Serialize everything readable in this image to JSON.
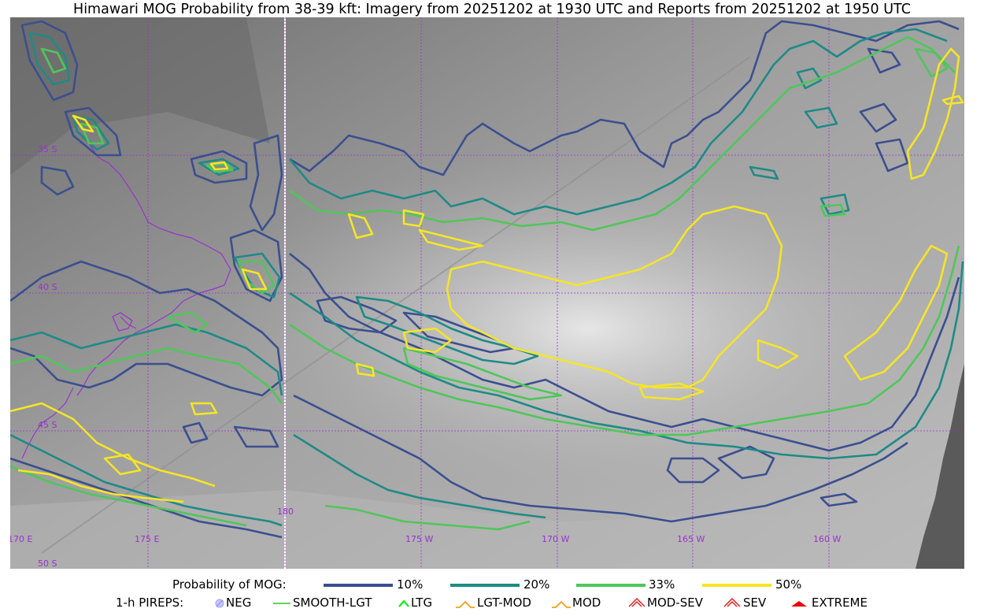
{
  "title": "Himawari MOG Probability from 38-39 kft: Imagery from 20251202 at 1930 UTC and Reports from 20251202 at 1950 UTC",
  "map": {
    "lat_labels": [
      "35 S",
      "40 S",
      "45 S",
      "50 S"
    ],
    "lon_labels": [
      "170 E",
      "175 E",
      "180",
      "175 W",
      "170 W",
      "165 W",
      "160 W"
    ]
  },
  "legend": {
    "probability_label": "Probability of MOG:",
    "levels": [
      {
        "label": "10%",
        "color": "#3b4f8f"
      },
      {
        "label": "20%",
        "color": "#1f8a86"
      },
      {
        "label": "33%",
        "color": "#4fc65a"
      },
      {
        "label": "50%",
        "color": "#f5e526"
      }
    ],
    "pireps_label": "1-h PIREPS:",
    "pireps": [
      {
        "label": "NEG",
        "icon": "neg-circle-icon",
        "color": "#c8c8ff"
      },
      {
        "label": "SMOOTH-LGT",
        "icon": "smooth-line-icon",
        "color": "#22cc22"
      },
      {
        "label": "LTG",
        "icon": "ltg-caret-icon",
        "color": "#00ee00"
      },
      {
        "label": "LGT-MOD",
        "icon": "lgt-mod-caret-icon",
        "color": "#f0a020"
      },
      {
        "label": "MOD",
        "icon": "mod-caret-icon",
        "color": "#f0a020"
      },
      {
        "label": "MOD-SEV",
        "icon": "mod-sev-caret-icon",
        "color": "#ee2222"
      },
      {
        "label": "SEV",
        "icon": "sev-caret-icon",
        "color": "#ee2222"
      },
      {
        "label": "EXTREME",
        "icon": "extreme-caret-icon",
        "color": "#ee0000"
      }
    ]
  }
}
